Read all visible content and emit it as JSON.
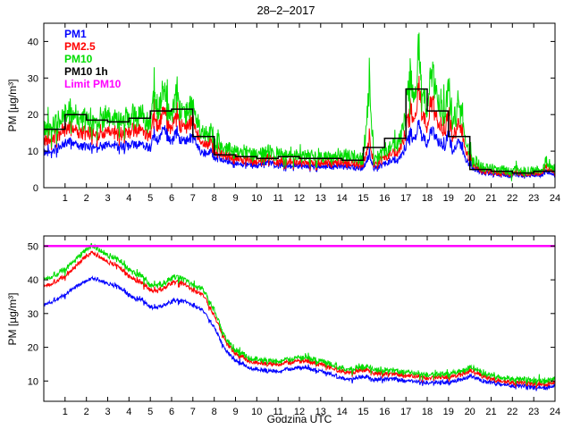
{
  "figure_title": "28–2–2017",
  "chart_data": [
    {
      "type": "line",
      "title": "28–2–2017",
      "ylabel": "PM [µg/m³]",
      "xlabel": "",
      "xlim": [
        0,
        24
      ],
      "ylim": [
        0,
        45
      ],
      "yticks": [
        0,
        10,
        20,
        30,
        40
      ],
      "xticks": [
        1,
        2,
        3,
        4,
        5,
        6,
        7,
        8,
        9,
        10,
        11,
        12,
        13,
        14,
        15,
        16,
        17,
        18,
        19,
        20,
        21,
        22,
        23,
        24
      ],
      "grid": false,
      "legend_position": "top-left",
      "legend": [
        {
          "name": "PM1",
          "color": "#0000ff"
        },
        {
          "name": "PM2.5",
          "color": "#ff0000"
        },
        {
          "name": "PM10",
          "color": "#00dd00"
        },
        {
          "name": "PM10 1h",
          "color": "#000000"
        },
        {
          "name": "Limit PM10",
          "color": "#ff00ff"
        }
      ],
      "series": [
        {
          "name": "PM1",
          "color": "#0000ff",
          "noise_base": 0.3,
          "noise_scale": 0.08,
          "x": [
            0,
            0.3,
            0.7,
            1.0,
            1.3,
            1.7,
            2.0,
            2.5,
            3.0,
            3.5,
            4.0,
            4.5,
            4.8,
            5.0,
            5.2,
            5.4,
            5.6,
            5.8,
            6.0,
            6.2,
            6.4,
            6.6,
            6.8,
            7.0,
            7.2,
            7.5,
            7.8,
            8.0,
            8.5,
            9.0,
            9.5,
            10,
            10.5,
            11,
            11.5,
            12,
            12.5,
            13,
            13.5,
            14,
            14.5,
            15,
            15.3,
            15.5,
            16,
            16.3,
            16.6,
            17.0,
            17.2,
            17.4,
            17.6,
            17.8,
            18.0,
            18.2,
            18.5,
            18.8,
            19.0,
            19.2,
            19.5,
            19.8,
            20,
            20.3,
            20.7,
            21,
            21.5,
            22,
            22.5,
            23,
            23.3,
            23.6,
            23.8,
            24
          ],
          "y": [
            9.5,
            10,
            11,
            12,
            13,
            11.5,
            11,
            11.5,
            11.5,
            11.5,
            11.5,
            12,
            11.5,
            11,
            14,
            12.5,
            16,
            14,
            12.5,
            14.5,
            12.5,
            13.5,
            13,
            14,
            11.5,
            9.5,
            10,
            8.5,
            7.5,
            6.5,
            6.2,
            6,
            6.8,
            6,
            6,
            6,
            5.6,
            6,
            5.5,
            6,
            5.5,
            5.5,
            9,
            5.5,
            6.5,
            7.5,
            7,
            11,
            15,
            13,
            18,
            14,
            12,
            16,
            13,
            11,
            15,
            10,
            13,
            7.5,
            6,
            5,
            4,
            3.5,
            3.5,
            3.3,
            3.5,
            3.3,
            3.5,
            4.5,
            4,
            3.5
          ]
        },
        {
          "name": "PM2.5",
          "color": "#ff0000",
          "noise_base": 0.4,
          "noise_scale": 0.1,
          "x": [
            0,
            0.3,
            0.7,
            1.0,
            1.3,
            1.7,
            2.0,
            2.5,
            3.0,
            3.5,
            4.0,
            4.5,
            4.8,
            5.0,
            5.2,
            5.4,
            5.6,
            5.8,
            6.0,
            6.2,
            6.4,
            6.6,
            6.8,
            7.0,
            7.2,
            7.5,
            7.8,
            8.0,
            8.5,
            9.0,
            9.5,
            10,
            10.5,
            11,
            11.5,
            12,
            12.5,
            13,
            13.5,
            14,
            14.5,
            15,
            15.3,
            15.5,
            16,
            16.3,
            16.6,
            17.0,
            17.2,
            17.4,
            17.6,
            17.8,
            18.0,
            18.2,
            18.5,
            18.8,
            19.0,
            19.2,
            19.5,
            19.8,
            20,
            20.3,
            20.7,
            21,
            21.5,
            22,
            22.5,
            23,
            23.3,
            23.6,
            23.8,
            24
          ],
          "y": [
            12.5,
            13.5,
            14.5,
            16,
            17,
            15,
            14.5,
            15,
            15,
            15,
            15,
            16,
            15,
            14.5,
            19,
            16,
            21,
            18,
            16,
            19,
            16,
            17.5,
            17,
            18,
            14.5,
            12,
            13,
            10.5,
            9,
            8,
            7.5,
            7,
            8,
            7,
            7,
            7,
            6.5,
            7,
            6.5,
            7,
            6.5,
            6.5,
            13,
            6.5,
            8,
            9.5,
            9,
            15,
            22,
            18,
            28,
            20,
            17,
            24,
            18,
            15,
            21,
            14,
            18,
            9.5,
            7.5,
            6,
            4.5,
            4,
            4,
            3.8,
            4,
            3.8,
            4,
            5.5,
            5,
            4
          ]
        },
        {
          "name": "PM10",
          "color": "#00dd00",
          "noise_base": 0.6,
          "noise_scale": 0.13,
          "x": [
            0,
            0.3,
            0.7,
            1.0,
            1.3,
            1.7,
            2.0,
            2.5,
            3.0,
            3.5,
            4.0,
            4.5,
            4.8,
            5.0,
            5.2,
            5.4,
            5.6,
            5.8,
            6.0,
            6.2,
            6.4,
            6.6,
            6.8,
            7.0,
            7.2,
            7.5,
            7.8,
            8.0,
            8.5,
            9.0,
            9.5,
            10,
            10.5,
            11,
            11.5,
            12,
            12.5,
            13,
            13.5,
            14,
            14.5,
            15,
            15.3,
            15.5,
            16,
            16.3,
            16.6,
            17.0,
            17.2,
            17.4,
            17.6,
            17.8,
            18.0,
            18.2,
            18.5,
            18.8,
            19.0,
            19.2,
            19.5,
            19.8,
            20,
            20.3,
            20.7,
            21,
            21.5,
            22,
            22.5,
            23,
            23.3,
            23.6,
            23.8,
            24
          ],
          "y": [
            16,
            17,
            18,
            20,
            21,
            19,
            18,
            19,
            19,
            19,
            19,
            20,
            19,
            18,
            24,
            20,
            26,
            22,
            20,
            24,
            20,
            22,
            21,
            22,
            18,
            15,
            16,
            13,
            11,
            10,
            9.5,
            9,
            10,
            9,
            9,
            9,
            8.5,
            9,
            8,
            9,
            8.5,
            8,
            28,
            8,
            10,
            12,
            11,
            20,
            30,
            24,
            38,
            26,
            22,
            32,
            24,
            20,
            28,
            18,
            24,
            12,
            9,
            7,
            5.5,
            5,
            5,
            4.5,
            5,
            4.5,
            5,
            7,
            6,
            5
          ]
        }
      ],
      "step_series": {
        "name": "PM10 1h",
        "color": "#000000",
        "hour_values": [
          16,
          20,
          18.5,
          18,
          19,
          21,
          21.5,
          14,
          9,
          8.5,
          8,
          8.5,
          8,
          8,
          7.5,
          11,
          13.5,
          27,
          21,
          14,
          5,
          4.5,
          4,
          4.5
        ]
      },
      "limit": null
    },
    {
      "type": "line",
      "title": "",
      "ylabel": "PM [µg/m³]",
      "xlabel": "Godzina UTC",
      "xlim": [
        0,
        24
      ],
      "ylim": [
        4,
        53
      ],
      "yticks": [
        10,
        20,
        30,
        40,
        50
      ],
      "xticks": [
        1,
        2,
        3,
        4,
        5,
        6,
        7,
        8,
        9,
        10,
        11,
        12,
        13,
        14,
        15,
        16,
        17,
        18,
        19,
        20,
        21,
        22,
        23,
        24
      ],
      "grid": false,
      "series": [
        {
          "name": "PM1",
          "color": "#0000ff",
          "noise_base": 0.55,
          "noise_scale": 0,
          "x": [
            0,
            0.5,
            1,
            1.5,
            2,
            2.3,
            2.6,
            3,
            3.5,
            4,
            4.3,
            4.6,
            5,
            5.3,
            5.6,
            6,
            6.3,
            6.6,
            7,
            7.3,
            7.6,
            8,
            8.3,
            8.6,
            9,
            9.5,
            10,
            10.5,
            11,
            11.5,
            12,
            12.5,
            13,
            13.5,
            14,
            14.3,
            14.6,
            15,
            15.5,
            16,
            16.5,
            17,
            17.5,
            18,
            18.5,
            19,
            19.3,
            19.6,
            20,
            20.3,
            20.6,
            21,
            21.5,
            22,
            22.5,
            23,
            23.5,
            24
          ],
          "y": [
            32.5,
            34,
            35.5,
            38,
            39.5,
            40.5,
            40,
            39,
            38,
            35.5,
            34.5,
            34,
            32,
            31.5,
            32.5,
            33.5,
            34,
            33.5,
            32.5,
            31.5,
            30,
            26,
            22,
            18.5,
            16,
            14.5,
            13.5,
            13,
            13,
            13.5,
            14,
            13.5,
            13,
            12,
            11,
            10.5,
            11,
            11.5,
            10.5,
            10.5,
            10.5,
            10,
            10,
            9.5,
            9.5,
            9.5,
            10,
            10.5,
            11.5,
            11,
            10,
            9.5,
            9,
            8.5,
            8.5,
            8,
            8,
            8.5
          ]
        },
        {
          "name": "PM2.5",
          "color": "#ff0000",
          "noise_base": 0.65,
          "noise_scale": 0,
          "x": [
            0,
            0.5,
            1,
            1.5,
            2,
            2.3,
            2.6,
            3,
            3.5,
            4,
            4.3,
            4.6,
            5,
            5.3,
            5.6,
            6,
            6.3,
            6.6,
            7,
            7.3,
            7.6,
            8,
            8.3,
            8.6,
            9,
            9.5,
            10,
            10.5,
            11,
            11.5,
            12,
            12.5,
            13,
            13.5,
            14,
            14.3,
            14.6,
            15,
            15.5,
            16,
            16.5,
            17,
            17.5,
            18,
            18.5,
            19,
            19.3,
            19.6,
            20,
            20.3,
            20.6,
            21,
            21.5,
            22,
            22.5,
            23,
            23.5,
            24
          ],
          "y": [
            38,
            39.5,
            41,
            44,
            47,
            48,
            47,
            45.5,
            44,
            41,
            40,
            39,
            37,
            36.5,
            37.5,
            39,
            39.5,
            38.5,
            37,
            36,
            34.5,
            29.5,
            25,
            21,
            18,
            16.5,
            15.5,
            15,
            15,
            15.5,
            16,
            15.5,
            15,
            14,
            13,
            12.5,
            13,
            13.5,
            12.5,
            12,
            12,
            11.5,
            11.5,
            11,
            11,
            11,
            11.5,
            12,
            13,
            12.5,
            11.5,
            10.5,
            10,
            9.5,
            9.5,
            9,
            9,
            9.5
          ]
        },
        {
          "name": "PM10",
          "color": "#00dd00",
          "noise_base": 0.8,
          "noise_scale": 0,
          "x": [
            0,
            0.5,
            1,
            1.5,
            2,
            2.3,
            2.6,
            3,
            3.5,
            4,
            4.3,
            4.6,
            5,
            5.3,
            5.6,
            6,
            6.3,
            6.6,
            7,
            7.3,
            7.6,
            8,
            8.3,
            8.6,
            9,
            9.5,
            10,
            10.5,
            11,
            11.5,
            12,
            12.5,
            13,
            13.5,
            14,
            14.3,
            14.6,
            15,
            15.5,
            16,
            16.5,
            17,
            17.5,
            18,
            18.5,
            19,
            19.3,
            19.6,
            20,
            20.3,
            20.6,
            21,
            21.5,
            22,
            22.5,
            23,
            23.5,
            24
          ],
          "y": [
            40,
            41.5,
            43,
            46,
            49,
            50,
            49,
            47.5,
            46,
            43,
            42,
            41,
            38.5,
            38,
            39,
            40.5,
            41,
            40,
            38.5,
            37.5,
            36,
            31,
            26,
            22,
            19,
            17.5,
            16.5,
            16,
            16,
            16.5,
            17,
            16.5,
            16,
            15,
            14,
            13.5,
            14,
            14.5,
            13.5,
            13,
            13,
            12.5,
            12.5,
            12,
            12,
            12,
            12.5,
            13,
            14,
            13.5,
            12.5,
            11.5,
            11,
            10.5,
            10.5,
            10,
            10,
            10.5
          ]
        }
      ],
      "step_series": null,
      "limit": {
        "name": "Limit PM10",
        "color": "#ff00ff",
        "value": 50
      }
    }
  ]
}
